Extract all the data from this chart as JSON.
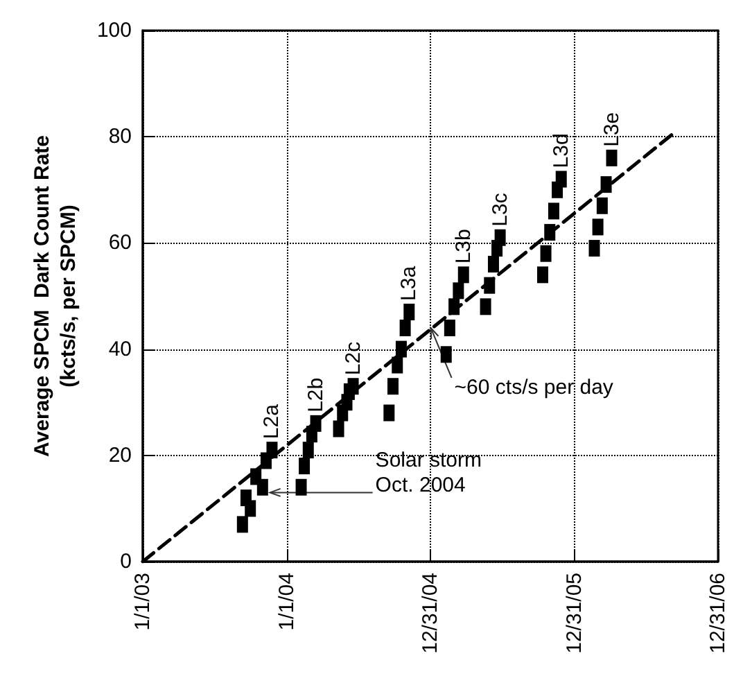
{
  "chart_data": {
    "type": "scatter",
    "ylabel": "Average SPCM  Dark Count Rate\n(kcts/s, per SPCM)",
    "xlim": [
      "2003-01-01",
      "2006-12-31"
    ],
    "xticks": [
      {
        "value": "2003-01-01",
        "label": "1/1/03"
      },
      {
        "value": "2004-01-01",
        "label": "1/1/04"
      },
      {
        "value": "2004-12-31",
        "label": "12/31/04"
      },
      {
        "value": "2005-12-31",
        "label": "12/31/05"
      },
      {
        "value": "2006-12-31",
        "label": "12/31/06"
      }
    ],
    "ylim": [
      0,
      100
    ],
    "yticks": [
      0,
      20,
      40,
      60,
      80,
      100
    ],
    "grid": true,
    "series": [
      {
        "color": "#000000",
        "marker": "square",
        "x": [
          "2003-09-11",
          "2003-09-20",
          "2003-10-01",
          "2003-10-15",
          "2003-11-01",
          "2003-11-10",
          "2003-11-25",
          "2004-02-07",
          "2004-02-15",
          "2004-02-25",
          "2004-03-05",
          "2004-03-15",
          "2004-05-12",
          "2004-05-22",
          "2004-06-02",
          "2004-06-08",
          "2004-06-18",
          "2004-09-17",
          "2004-09-27",
          "2004-10-08",
          "2004-10-18",
          "2004-10-28",
          "2004-11-07",
          "2005-02-09",
          "2005-02-18",
          "2005-03-01",
          "2005-03-12",
          "2005-03-25",
          "2005-05-20",
          "2005-05-30",
          "2005-06-09",
          "2005-06-18",
          "2005-06-26",
          "2005-10-12",
          "2005-10-20",
          "2005-10-30",
          "2005-11-09",
          "2005-11-18",
          "2005-11-28",
          "2006-02-20",
          "2006-03-01",
          "2006-03-12",
          "2006-03-22",
          "2006-04-05"
        ],
        "values": [
          7,
          12,
          10,
          16,
          14,
          19,
          21,
          14,
          18,
          21,
          24,
          26,
          25,
          28,
          30,
          32,
          33,
          28,
          33,
          37,
          40,
          44,
          47,
          39,
          44,
          48,
          51,
          54,
          48,
          52,
          56,
          59,
          61,
          54,
          58,
          62,
          66,
          70,
          72,
          59,
          63,
          67,
          71,
          76
        ],
        "value_labels": [
          null,
          null,
          null,
          null,
          null,
          null,
          "L2a",
          null,
          null,
          null,
          null,
          "L2b",
          null,
          null,
          null,
          null,
          "L2c",
          null,
          null,
          null,
          null,
          null,
          "L3a",
          null,
          null,
          null,
          null,
          "L3b",
          null,
          null,
          null,
          null,
          "L3c",
          null,
          null,
          null,
          null,
          null,
          "L3d",
          null,
          null,
          null,
          null,
          "L3e"
        ]
      },
      {
        "type": "line",
        "color": "#000000",
        "marker": "none",
        "line_style": "dashed",
        "x": [
          "2003-01-01",
          "2006-09-15"
        ],
        "values": [
          0,
          81
        ]
      }
    ],
    "annotations": [
      {
        "text": "~60 cts/s per day",
        "x": "2005-01-01",
        "y": 44
      },
      {
        "text": "Solar storm\nOct. 2004",
        "x": "2003-11-20",
        "y": 13
      }
    ]
  }
}
